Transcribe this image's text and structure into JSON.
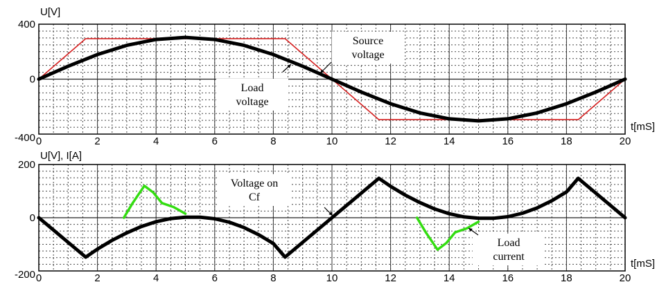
{
  "chart_data": [
    {
      "type": "line",
      "ylabel": "U[V]",
      "xlabel": "t[mS]",
      "xlim": [
        0,
        20
      ],
      "ylim": [
        -400,
        400
      ],
      "x_ticks": [
        "0",
        "2",
        "4",
        "6",
        "8",
        "10",
        "12",
        "14",
        "16",
        "18",
        "20"
      ],
      "y_ticks": [
        "400",
        "0",
        "-400"
      ],
      "grid": true,
      "series": [
        {
          "color": "#d62020",
          "x": [
            0,
            1.6,
            8.4,
            11.6,
            18.4,
            20
          ],
          "y": [
            0,
            295,
            295,
            -295,
            -295,
            0
          ]
        },
        {
          "color": "#000000",
          "x": [
            0,
            1,
            2,
            3,
            4,
            5,
            6,
            7,
            8,
            9,
            10,
            11,
            12,
            13,
            14,
            15,
            16,
            17,
            18,
            19,
            20
          ],
          "y": [
            0,
            94,
            179,
            246,
            289,
            304,
            289,
            246,
            179,
            94,
            0,
            -94,
            -179,
            -246,
            -289,
            -304,
            -289,
            -246,
            -179,
            -94,
            0
          ]
        }
      ],
      "annotations": [
        {
          "lines": [
            "Source",
            "voltage"
          ],
          "x": 10.8,
          "y": 212
        },
        {
          "lines": [
            "Load",
            "voltage"
          ],
          "x": 6.3,
          "y": -40
        }
      ]
    },
    {
      "type": "line",
      "ylabel": "U[V], I[A]",
      "xlabel": "t[mS]",
      "xlim": [
        0,
        20
      ],
      "ylim": [
        -200,
        200
      ],
      "x_ticks": [
        "0",
        "2",
        "4",
        "6",
        "8",
        "10",
        "12",
        "14",
        "16",
        "18",
        "20"
      ],
      "y_ticks": [
        "200",
        "0",
        "-200"
      ],
      "grid": true,
      "series": [
        {
          "color": "#000000",
          "x": [
            0,
            1.6,
            2,
            2.5,
            3,
            3.5,
            4,
            4.5,
            5,
            5.5,
            6,
            6.5,
            7,
            7.5,
            8,
            8.4,
            10,
            11.6,
            12,
            12.5,
            13,
            13.5,
            14,
            14.5,
            15,
            15.5,
            16,
            16.5,
            17,
            17.5,
            18,
            18.4,
            20
          ],
          "y": [
            0,
            -148,
            -118,
            -85,
            -57,
            -33,
            -15,
            -3,
            2,
            2,
            -4,
            -17,
            -37,
            -64,
            -97,
            -148,
            0,
            148,
            118,
            85,
            57,
            33,
            15,
            3,
            -2,
            -2,
            4,
            17,
            37,
            64,
            97,
            148,
            0
          ]
        },
        {
          "color": "#33dd11",
          "x": [
            2.9,
            3.2,
            3.6,
            3.9,
            4.2,
            4.6,
            5.0
          ],
          "y": [
            0,
            55,
            120,
            95,
            55,
            40,
            15
          ]
        },
        {
          "color": "#33dd11",
          "x": [
            12.9,
            13.2,
            13.6,
            13.9,
            14.2,
            14.6,
            15.0
          ],
          "y": [
            0,
            -55,
            -120,
            -95,
            -55,
            -40,
            -15
          ]
        }
      ],
      "annotations": [
        {
          "lines": [
            "Voltage on",
            "Cf"
          ],
          "x": 6.7,
          "y": 120
        },
        {
          "lines": [
            "Load",
            "current"
          ],
          "x": 15.5,
          "y": -140
        }
      ]
    }
  ]
}
